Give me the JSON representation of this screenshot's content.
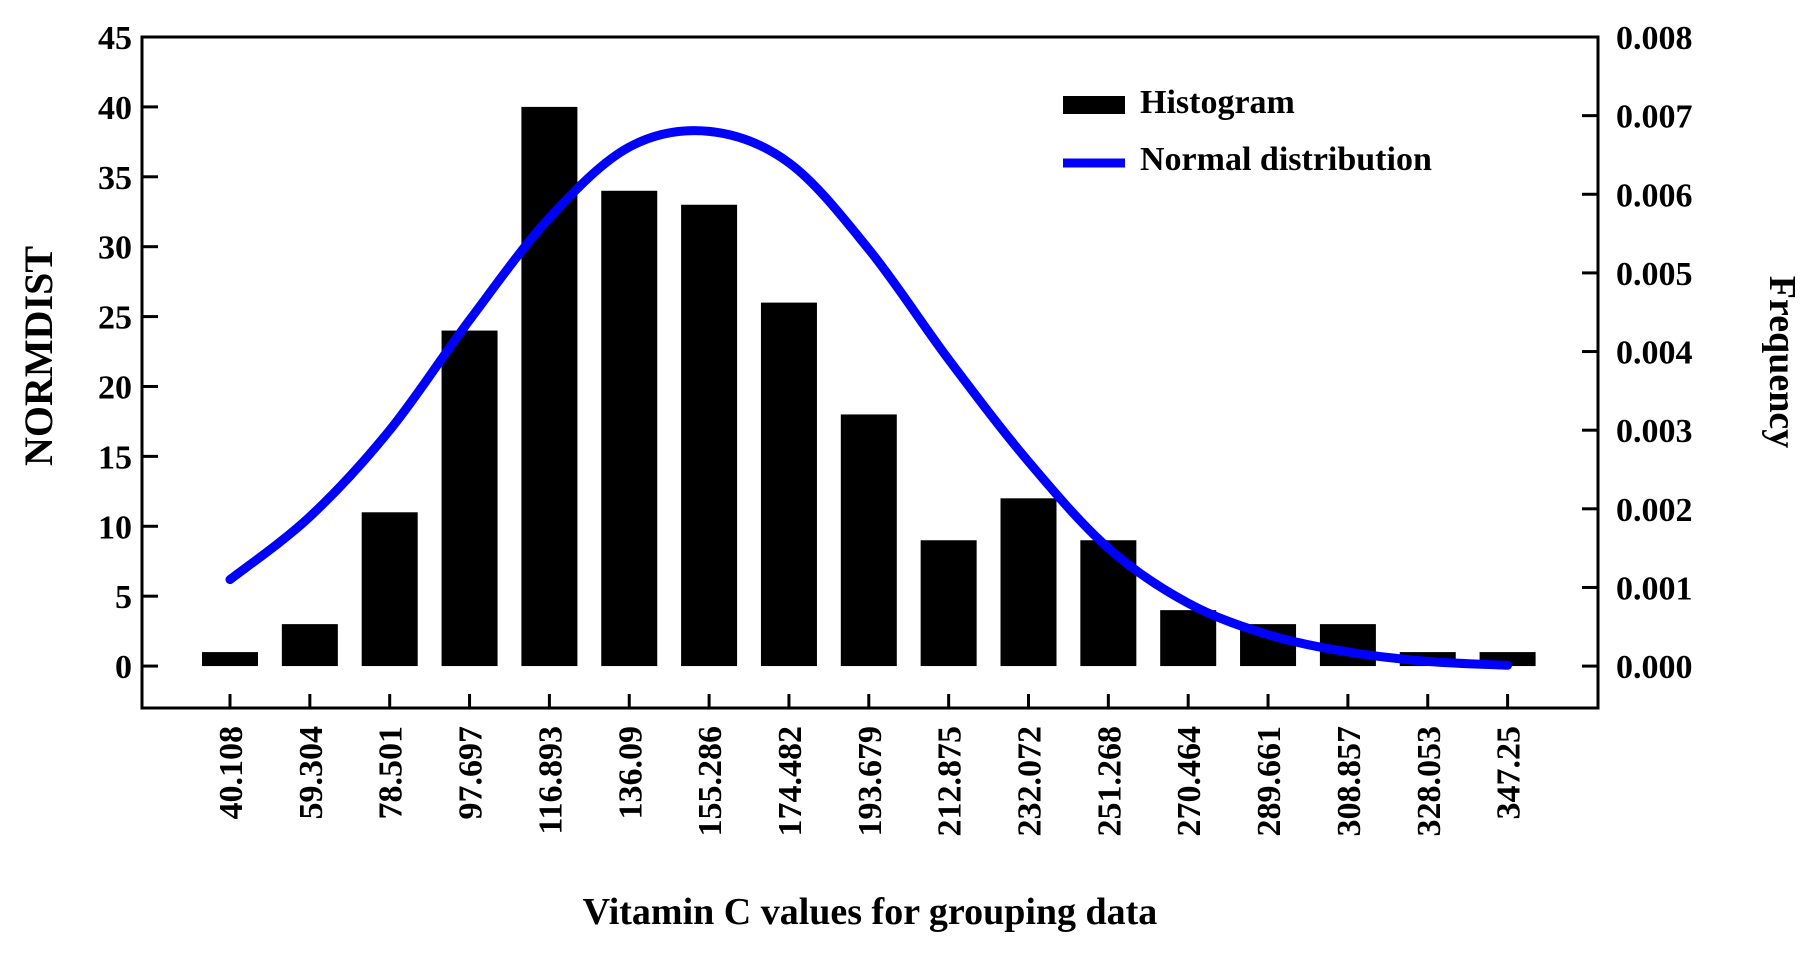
{
  "chart_data": {
    "type": "bar",
    "title": "",
    "xlabel": "Vitamin C values for grouping data",
    "ylabel_left": "NORMDIST",
    "ylabel_right": "Frequency",
    "categories": [
      "40.108",
      "59.304",
      "78.501",
      "97.697",
      "116.893",
      "136.09",
      "155.286",
      "174.482",
      "193.679",
      "212.875",
      "232.072",
      "251.268",
      "270.464",
      "289.661",
      "308.857",
      "328.053",
      "347.25"
    ],
    "ylim_left": [
      -3,
      45
    ],
    "yticks_left": [
      0,
      5,
      10,
      15,
      20,
      25,
      30,
      35,
      40,
      45
    ],
    "ytick_labels_left": [
      "0",
      "5",
      "10",
      "15",
      "20",
      "25",
      "30",
      "35",
      "40",
      "45"
    ],
    "ylim_right": [
      -0.000533,
      0.008
    ],
    "yticks_right": [
      0,
      0.001,
      0.002,
      0.003,
      0.004,
      0.005,
      0.006,
      0.007,
      0.008
    ],
    "ytick_labels_right": [
      "0.000",
      "0.001",
      "0.002",
      "0.003",
      "0.004",
      "0.005",
      "0.006",
      "0.007",
      "0.008"
    ],
    "series": [
      {
        "name": "Histogram",
        "type": "bar",
        "axis": "left",
        "color": "#000000",
        "values": [
          1,
          3,
          11,
          24,
          40,
          34,
          33,
          26,
          18,
          9,
          12,
          9,
          4,
          3,
          3,
          1,
          1
        ]
      },
      {
        "name": "Normal distribution",
        "type": "line",
        "axis": "right",
        "color": "#0000ff",
        "values": [
          0.0011,
          0.0019,
          0.003,
          0.0044,
          0.0057,
          0.0066,
          0.0068,
          0.0064,
          0.0053,
          0.0039,
          0.0026,
          0.0015,
          0.0008,
          0.0004,
          0.00018,
          6e-05,
          1e-05
        ]
      }
    ],
    "legend": {
      "position": "top-right",
      "entries": [
        "Histogram",
        "Normal distribution"
      ]
    },
    "grid": false
  }
}
